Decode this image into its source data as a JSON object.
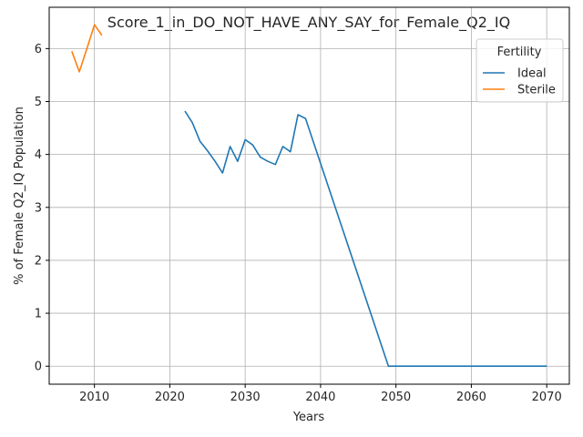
{
  "chart_data": {
    "type": "line",
    "title": "Score_1_in_DO_NOT_HAVE_ANY_SAY_for_Female_Q2_IQ",
    "xlabel": "Years",
    "ylabel": "% of Female Q2_IQ Population",
    "xlim": [
      2004,
      2073
    ],
    "ylim": [
      -0.34,
      6.78
    ],
    "xticks": [
      2010,
      2020,
      2030,
      2040,
      2050,
      2060,
      2070
    ],
    "yticks": [
      0,
      1,
      2,
      3,
      4,
      5,
      6
    ],
    "grid": true,
    "legend": {
      "title": "Fertility",
      "placement": "top-right"
    },
    "series": [
      {
        "name": "Ideal",
        "color": "#1f77b4",
        "points": [
          [
            2022,
            4.82
          ],
          [
            2023,
            4.6
          ],
          [
            2024,
            4.25
          ],
          [
            2025,
            4.07
          ],
          [
            2026,
            3.87
          ],
          [
            2027,
            3.65
          ],
          [
            2028,
            4.15
          ],
          [
            2029,
            3.87
          ],
          [
            2030,
            4.28
          ],
          [
            2031,
            4.18
          ],
          [
            2032,
            3.95
          ],
          [
            2033,
            3.87
          ],
          [
            2034,
            3.81
          ],
          [
            2035,
            4.15
          ],
          [
            2036,
            4.05
          ],
          [
            2037,
            4.75
          ],
          [
            2038,
            4.68
          ],
          [
            2049,
            0.0
          ],
          [
            2050,
            0.0
          ],
          [
            2055,
            0.0
          ],
          [
            2060,
            0.0
          ],
          [
            2065,
            0.0
          ],
          [
            2070,
            0.0
          ]
        ]
      },
      {
        "name": "Sterile",
        "color": "#ff7f0e",
        "points": [
          [
            2007,
            5.95
          ],
          [
            2008,
            5.56
          ],
          [
            2009,
            6.0
          ],
          [
            2010,
            6.45
          ],
          [
            2011,
            6.25
          ]
        ]
      }
    ]
  }
}
